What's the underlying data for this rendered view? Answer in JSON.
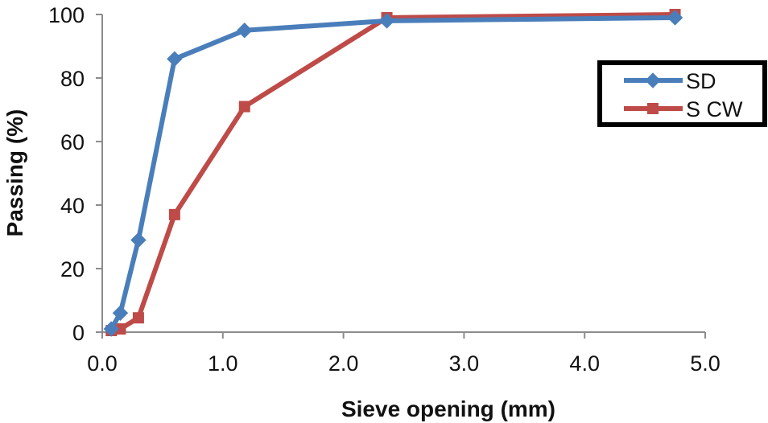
{
  "chart_data": {
    "type": "line",
    "title": "",
    "xlabel": "Sieve opening (mm)",
    "ylabel": "Passing (%)",
    "xlim": [
      0,
      5
    ],
    "ylim": [
      0,
      100
    ],
    "x_ticks": [
      "0.0",
      "1.0",
      "2.0",
      "3.0",
      "4.0",
      "5.0"
    ],
    "y_ticks": [
      "0",
      "20",
      "40",
      "60",
      "80",
      "100"
    ],
    "grid": false,
    "legend_position": "top-right",
    "series": [
      {
        "name": "SD",
        "color": "#4a7ebb",
        "marker": "diamond",
        "points": [
          {
            "x": 0.075,
            "y": 1
          },
          {
            "x": 0.15,
            "y": 6
          },
          {
            "x": 0.3,
            "y": 29
          },
          {
            "x": 0.6,
            "y": 86
          },
          {
            "x": 1.18,
            "y": 95
          },
          {
            "x": 2.36,
            "y": 98
          },
          {
            "x": 4.75,
            "y": 99
          }
        ]
      },
      {
        "name": "S CW",
        "color": "#be4b48",
        "marker": "square",
        "points": [
          {
            "x": 0.075,
            "y": 0.5
          },
          {
            "x": 0.15,
            "y": 1
          },
          {
            "x": 0.3,
            "y": 4.5
          },
          {
            "x": 0.6,
            "y": 37
          },
          {
            "x": 1.18,
            "y": 71
          },
          {
            "x": 2.36,
            "y": 99
          },
          {
            "x": 4.75,
            "y": 100
          }
        ]
      }
    ]
  }
}
